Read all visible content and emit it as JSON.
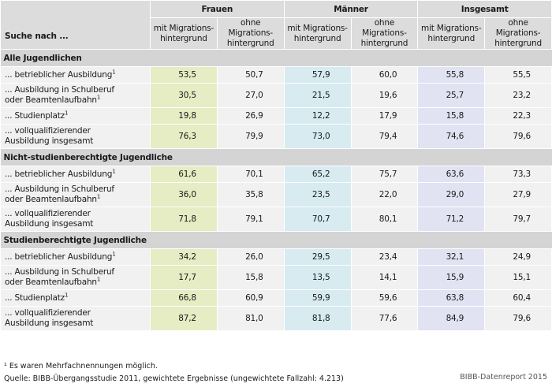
{
  "header": {
    "search_label": "Suche nach ...",
    "groups": [
      "Frauen",
      "Männer",
      "Insgesamt"
    ],
    "sub": [
      "mit Migrations-\nhintergrund",
      "ohne Migrations-\nhintergrund"
    ]
  },
  "sections": [
    {
      "title": "Alle Jugendlichen",
      "rows": [
        {
          "label": "... betrieblicher Ausbildung",
          "sup": "1",
          "values": [
            "53,5",
            "50,7",
            "57,9",
            "60,0",
            "55,8",
            "55,5"
          ]
        },
        {
          "label": "... Ausbildung in Schulberuf\noder Beamtenlaufbahn",
          "sup": "1",
          "values": [
            "30,5",
            "27,0",
            "21,5",
            "19,6",
            "25,7",
            "23,2"
          ]
        },
        {
          "label": "... Studienplatz",
          "sup": "1",
          "values": [
            "19,8",
            "26,9",
            "12,2",
            "17,9",
            "15,8",
            "22,3"
          ]
        },
        {
          "label": "... vollqualifizierender\nAusbildung insgesamt",
          "sup": "",
          "values": [
            "76,3",
            "79,9",
            "73,0",
            "79,4",
            "74,6",
            "79,6"
          ]
        }
      ]
    },
    {
      "title": "Nicht-studienberechtigte Jugendliche",
      "rows": [
        {
          "label": "... betrieblicher Ausbildung",
          "sup": "1",
          "values": [
            "61,6",
            "70,1",
            "65,2",
            "75,7",
            "63,6",
            "73,3"
          ]
        },
        {
          "label": "... Ausbildung in Schulberuf\noder Beamtenlaufbahn",
          "sup": "1",
          "values": [
            "36,0",
            "35,8",
            "23,5",
            "22,0",
            "29,0",
            "27,9"
          ]
        },
        {
          "label": "... vollqualifizierender\nAusbildung insgesamt",
          "sup": "",
          "values": [
            "71,8",
            "79,1",
            "70,7",
            "80,1",
            "71,2",
            "79,7"
          ]
        }
      ]
    },
    {
      "title": "Studienberechtigte Jugendliche",
      "rows": [
        {
          "label": "... betrieblicher Ausbildung",
          "sup": "1",
          "values": [
            "34,2",
            "26,0",
            "29,5",
            "23,4",
            "32,1",
            "24,9"
          ]
        },
        {
          "label": "... Ausbildung in Schulberuf\noder Beamtenlaufbahn",
          "sup": "1",
          "values": [
            "17,7",
            "15,8",
            "13,5",
            "14,1",
            "15,9",
            "15,1"
          ]
        },
        {
          "label": "... Studienplatz",
          "sup": "1",
          "values": [
            "66,8",
            "60,9",
            "59,9",
            "59,6",
            "63,8",
            "60,4"
          ]
        },
        {
          "label": "... vollqualifizierender\nAusbildung insgesamt",
          "sup": "",
          "values": [
            "87,2",
            "81,0",
            "81,8",
            "77,6",
            "84,9",
            "79,6"
          ]
        }
      ]
    }
  ],
  "footnote": "¹ Es waren Mehrfachnennungen möglich.",
  "source": "Quelle: BIBB-Übergangsstudie 2011, gewichtete Ergebnisse (ungewichtete Fallzahl: 4.213)",
  "credit": "BIBB-Datenreport 2015",
  "colors": {
    "header_bg": "#dcdcdc",
    "section_bg": "#d4d4d4",
    "frauen_mit": "#e6ecc3",
    "maenner_mit": "#d7ebf1",
    "insgesamt_mit": "#e1e3f3",
    "neutral": "#f1f1f1"
  }
}
